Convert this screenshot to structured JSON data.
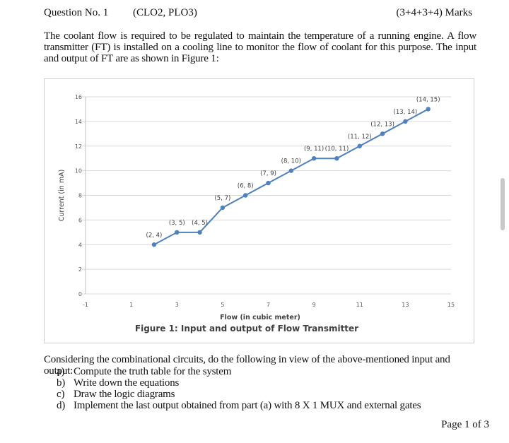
{
  "header": {
    "question": "Question No. 1",
    "clo": "(CLO2, PLO3)",
    "marks": "(3+4+3+4) Marks"
  },
  "intro": "The coolant flow is required to be regulated to maintain the temperature of a running engine. A flow transmitter (FT) is installed on a cooling line to monitor the flow of coolant for this purpose. The input and output of FT are as shown in Figure 1:",
  "chart_data": {
    "type": "line",
    "title": "Figure 1: Input and output of Flow Transmitter",
    "xlabel": "Flow (in cubic meter)",
    "ylabel": "Current (in mA)",
    "xlim": [
      -1,
      15
    ],
    "ylim": [
      0,
      16
    ],
    "xticks": [
      "-1",
      "1",
      "3",
      "5",
      "7",
      "9",
      "11",
      "13",
      "15"
    ],
    "yticks": [
      "0",
      "2",
      "4",
      "6",
      "8",
      "10",
      "12",
      "14",
      "16"
    ],
    "color": "#4f81bd",
    "x": [
      2,
      3,
      4,
      5,
      6,
      7,
      8,
      9,
      10,
      11,
      12,
      13,
      14
    ],
    "y": [
      4,
      5,
      5,
      7,
      8,
      9,
      10,
      11,
      11,
      12,
      13,
      14,
      15
    ],
    "labels": [
      "(2, 4)",
      "(3, 5)",
      "(4, 5)",
      "(5, 7)",
      "(6, 8)",
      "(7, 9)",
      "(8, 10)",
      "(9, 11)",
      "(10, 11)",
      "(11, 12)",
      "(12, 13)",
      "(13, 14)",
      "(14, 15)"
    ]
  },
  "considering": "Considering the combinational circuits, do the following in view of the above-mentioned input and output:",
  "tasks": [
    {
      "marker": "a)",
      "text": "Compute the truth table for the system"
    },
    {
      "marker": "b)",
      "text": "Write down the equations"
    },
    {
      "marker": "c)",
      "text": "Draw the logic diagrams"
    },
    {
      "marker": "d)",
      "text": "Implement the last output obtained from part (a) with 8 X 1 MUX and external gates"
    }
  ],
  "footer": {
    "page": "Page 1 of 3"
  }
}
